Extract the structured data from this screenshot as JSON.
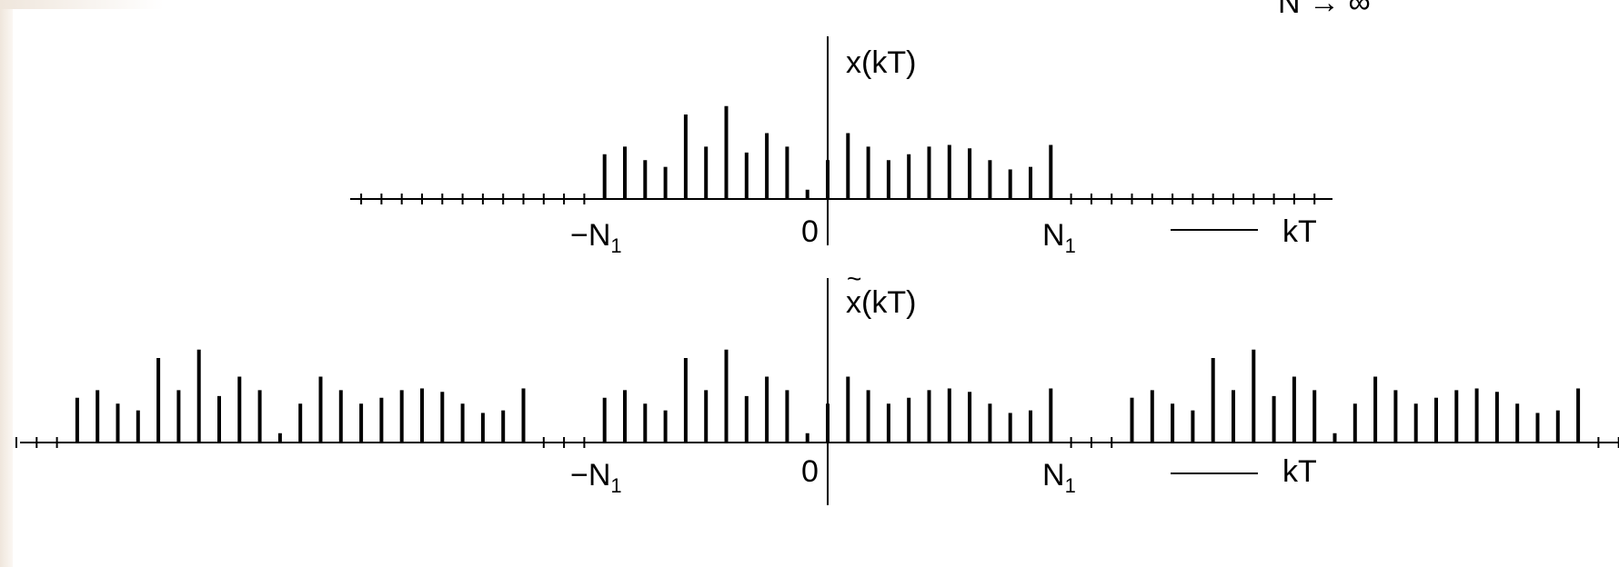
{
  "header": {
    "limit_text": "N → ∞"
  },
  "plots": [
    {
      "id": "aperiodic",
      "ylabel": "x(kT)",
      "xlabel": "kT",
      "labels": {
        "neg_n1": "−N",
        "n1": "N",
        "sub": "1",
        "zero": "0"
      },
      "left_k": -23,
      "right_k": 24,
      "left_zero_k": -11,
      "right_zero_k": 11,
      "values": [
        0.53,
        0.62,
        0.46,
        0.38,
        1.0,
        0.62,
        1.1,
        0.55,
        0.78,
        0.62,
        0.11,
        0.46,
        0.78,
        0.62,
        0.46,
        0.53,
        0.62,
        0.64,
        0.6,
        0.46,
        0.35,
        0.38,
        0.64
      ]
    },
    {
      "id": "periodic",
      "ylabel": "x(kT)",
      "ylabel_accent": "~",
      "xlabel": "kT",
      "labels": {
        "neg_n1": "−N",
        "n1": "N",
        "sub": "1",
        "zero": "0"
      },
      "left_k": -40,
      "right_k": 40,
      "period": 26,
      "values": [
        0.53,
        0.62,
        0.46,
        0.38,
        1.0,
        0.62,
        1.1,
        0.55,
        0.78,
        0.62,
        0.11,
        0.46,
        0.78,
        0.62,
        0.46,
        0.53,
        0.62,
        0.64,
        0.6,
        0.46,
        0.35,
        0.38,
        0.64
      ]
    }
  ]
}
